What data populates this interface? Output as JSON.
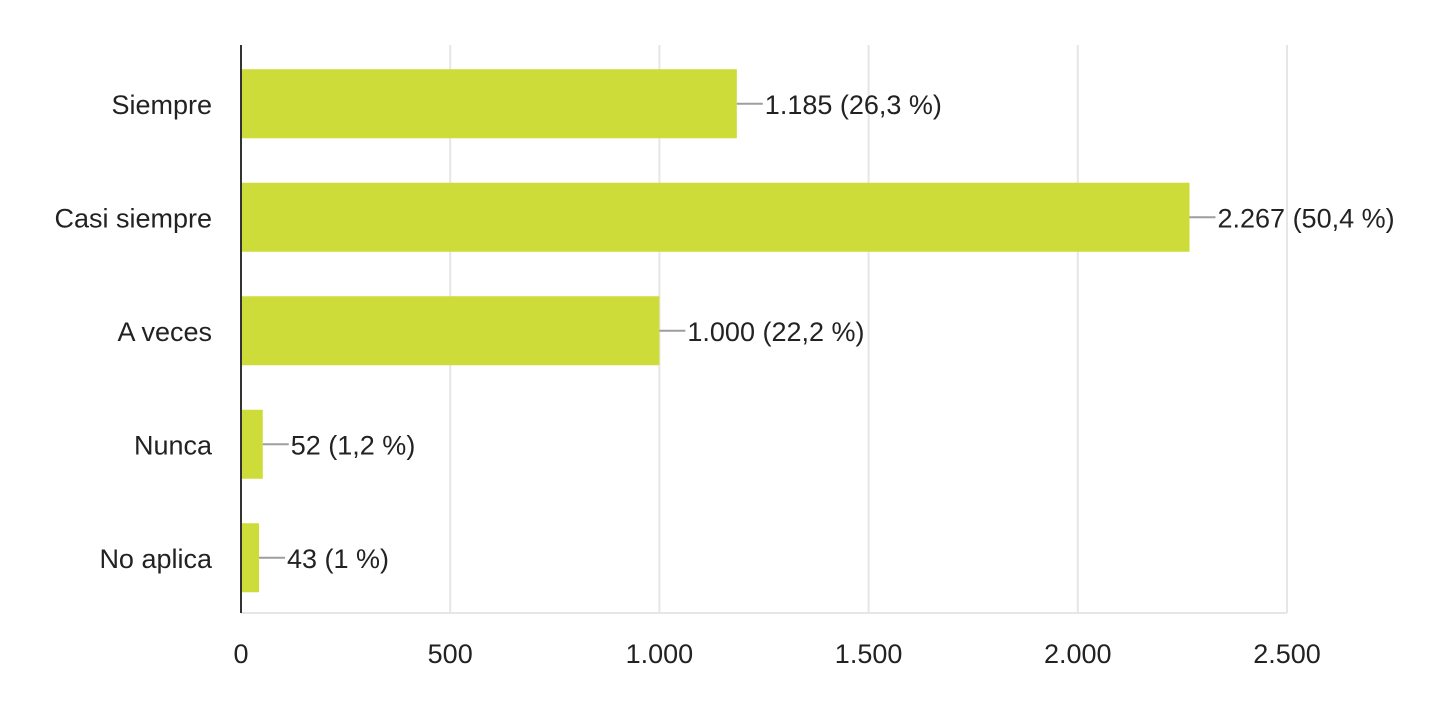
{
  "chart_data": {
    "type": "bar",
    "orientation": "horizontal",
    "categories": [
      "Siempre",
      "Casi siempre",
      "A veces",
      "Nunca",
      "No aplica"
    ],
    "values": [
      1185,
      2267,
      1000,
      52,
      43
    ],
    "data_labels": [
      "1.185 (26,3 %)",
      "2.267 (50,4 %)",
      "1.000 (22,2 %)",
      "52 (1,2 %)",
      "43 (1 %)"
    ],
    "title": "",
    "xlabel": "",
    "ylabel": "",
    "xlim": [
      0,
      2500
    ],
    "x_ticks": [
      0,
      500,
      1000,
      1500,
      2000,
      2500
    ],
    "x_tick_labels": [
      "0",
      "500",
      "1.000",
      "1.500",
      "2.000",
      "2.500"
    ],
    "grid": true,
    "legend": "none",
    "colors": {
      "bar": "#cddc39",
      "grid": "#e6e6e6",
      "axis": "#333333",
      "leader": "#9e9e9e",
      "text": "#222222"
    }
  }
}
